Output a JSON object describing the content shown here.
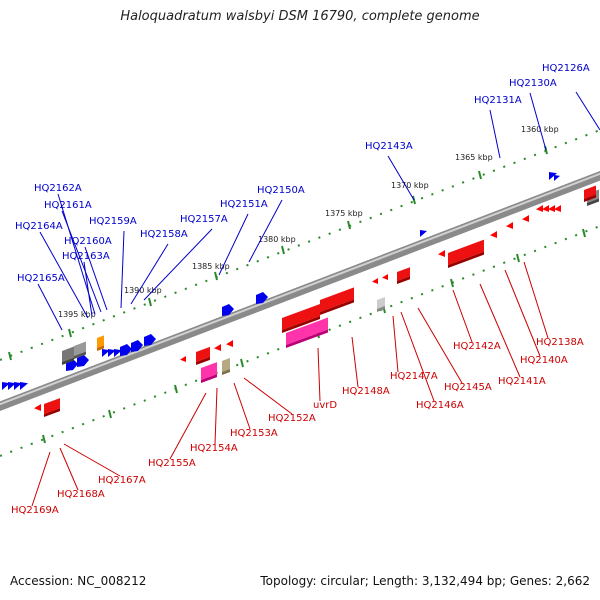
{
  "title": "Haloquadratum walsbyi DSM 16790, complete genome",
  "footer": {
    "accession": "Accession: NC_008212",
    "summary": "Topology: circular; Length: 3,132,494 bp; Genes: 2,662"
  },
  "colors": {
    "forward_label": "#0000cc",
    "reverse_label": "#cc0000",
    "tick_track": "#2a8a2a",
    "backbone": "#777777"
  },
  "scale_labels": [
    "1360 kbp",
    "1365 kbp",
    "1370 kbp",
    "1375 kbp",
    "1380 kbp",
    "1385 kbp",
    "1390 kbp",
    "1395 kbp"
  ],
  "forward_genes": [
    "HQ2126A",
    "HQ2130A",
    "HQ2131A",
    "HQ2143A",
    "HQ2150A",
    "HQ2151A",
    "HQ2157A",
    "HQ2158A",
    "HQ2159A",
    "HQ2160A",
    "HQ2161A",
    "HQ2162A",
    "HQ2163A",
    "HQ2164A",
    "HQ2165A"
  ],
  "reverse_genes": [
    "HQ2138A",
    "HQ2140A",
    "HQ2141A",
    "HQ2142A",
    "HQ2145A",
    "HQ2146A",
    "HQ2147A",
    "HQ2148A",
    "uvrD",
    "HQ2152A",
    "HQ2153A",
    "HQ2154A",
    "HQ2155A",
    "HQ2167A",
    "HQ2168A",
    "HQ2169A"
  ]
}
